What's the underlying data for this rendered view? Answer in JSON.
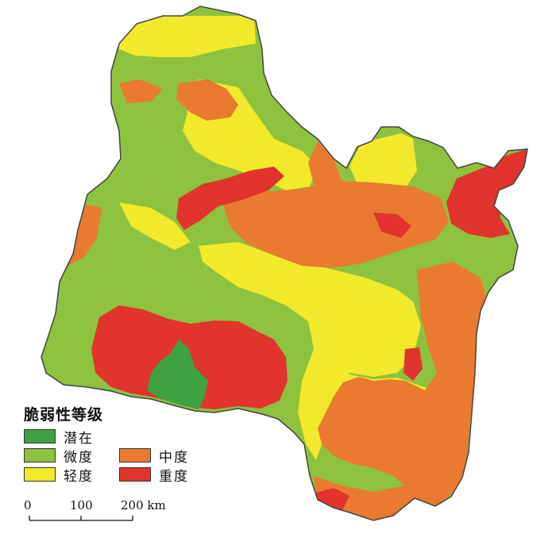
{
  "map": {
    "colors": {
      "latent": "#3ea142",
      "slight": "#8dc23e",
      "light": "#f2e92a",
      "moderate": "#e97a2f",
      "severe": "#e1342c",
      "outline": "#444444"
    }
  },
  "legend": {
    "title": "脆弱性等级",
    "items": [
      {
        "label": "潜在",
        "color": "#3ea142"
      },
      {
        "label": "微度",
        "color": "#8dc23e"
      },
      {
        "label": "轻度",
        "color": "#f2e92a"
      },
      {
        "label": "中度",
        "color": "#e97a2f"
      },
      {
        "label": "重度",
        "color": "#e1342c"
      }
    ]
  },
  "scalebar": {
    "ticks": [
      "0",
      "100",
      "200 km"
    ]
  }
}
